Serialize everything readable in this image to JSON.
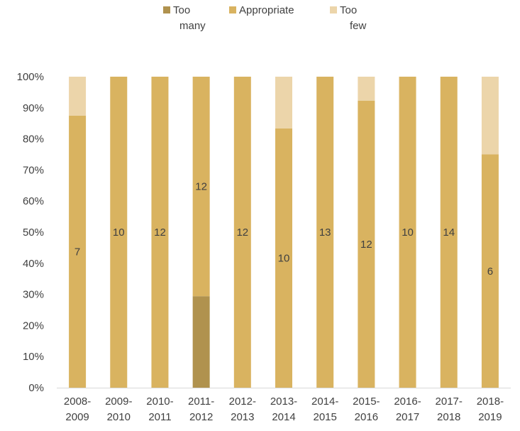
{
  "chart_data": {
    "type": "bar",
    "stacked": true,
    "stack_mode": "percent",
    "categories": [
      [
        "2008-",
        "2009"
      ],
      [
        "2009-",
        "2010"
      ],
      [
        "2010-",
        "2011"
      ],
      [
        "2011-",
        "2012"
      ],
      [
        "2012-",
        "2013"
      ],
      [
        "2013-",
        "2014"
      ],
      [
        "2014-",
        "2015"
      ],
      [
        "2015-",
        "2016"
      ],
      [
        "2016-",
        "2017"
      ],
      [
        "2017-",
        "2018"
      ],
      [
        "2018-",
        "2019"
      ]
    ],
    "series": [
      {
        "name": [
          "Too",
          "many"
        ],
        "color": "#b0924e",
        "values": [
          0,
          0,
          0,
          5,
          0,
          0,
          0,
          0,
          0,
          0,
          0
        ],
        "labels": [
          null,
          null,
          null,
          null,
          null,
          null,
          null,
          null,
          null,
          null,
          null
        ]
      },
      {
        "name": [
          "Appropriate"
        ],
        "color": "#d9b360",
        "values": [
          7,
          10,
          12,
          12,
          12,
          10,
          13,
          12,
          10,
          14,
          6
        ],
        "labels": [
          "7",
          "10",
          "12",
          "12",
          "12",
          "10",
          "13",
          "12",
          "10",
          "14",
          "6"
        ]
      },
      {
        "name": [
          "Too",
          "few"
        ],
        "color": "#ecd5aa",
        "values": [
          1,
          0,
          0,
          0,
          0,
          2,
          0,
          1,
          0,
          0,
          2
        ],
        "labels": [
          null,
          null,
          null,
          null,
          null,
          null,
          null,
          null,
          null,
          null,
          null
        ]
      }
    ],
    "title": "",
    "xlabel": "",
    "ylabel": "",
    "ylim": [
      0,
      100
    ],
    "yticks": [
      "0%",
      "10%",
      "20%",
      "30%",
      "40%",
      "50%",
      "60%",
      "70%",
      "80%",
      "90%",
      "100%"
    ],
    "grid": false,
    "legend": "top-center"
  }
}
